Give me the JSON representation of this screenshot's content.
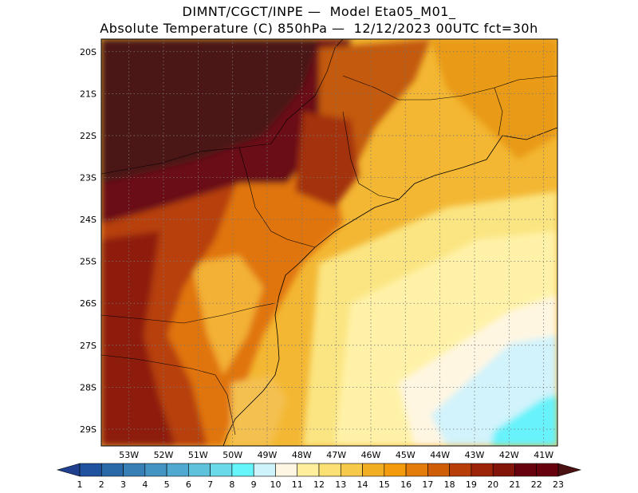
{
  "title": {
    "line1": "DIMNT/CGCT/INPE —  Model Eta05_M01_",
    "line2": "Absolute Temperature (C) 850hPa —  12/12/2023 00UTC fct=30h"
  },
  "map": {
    "lon_labels": [
      "53W",
      "52W",
      "51W",
      "50W",
      "49W",
      "48W",
      "47W",
      "46W",
      "45W",
      "44W",
      "43W",
      "42W",
      "41W"
    ],
    "lat_labels": [
      "20S",
      "21S",
      "22S",
      "23S",
      "24S",
      "25S",
      "26S",
      "27S",
      "28S",
      "29S"
    ],
    "lon_range": [
      -53.8,
      -40.6
    ],
    "lat_range": [
      -19.7,
      -29.4
    ]
  },
  "colorbar": {
    "labels": [
      "1",
      "2",
      "3",
      "4",
      "5",
      "6",
      "7",
      "8",
      "9",
      "10",
      "11",
      "12",
      "13",
      "14",
      "15",
      "16",
      "17",
      "18",
      "19",
      "20",
      "21",
      "22",
      "23"
    ],
    "colors": [
      "#1f3f8f",
      "#20529f",
      "#2a6aa8",
      "#3780b5",
      "#4394c3",
      "#50a9d0",
      "#5ec2dc",
      "#6ad9e9",
      "#66f5fb",
      "#cff3fb",
      "#fff5e3",
      "#ffef9c",
      "#fbe073",
      "#f6c94a",
      "#f2ae22",
      "#f39b0c",
      "#e37c0a",
      "#cf5d06",
      "#b83e08",
      "#9c2408",
      "#821409",
      "#67010e",
      "#4a1012"
    ]
  }
}
